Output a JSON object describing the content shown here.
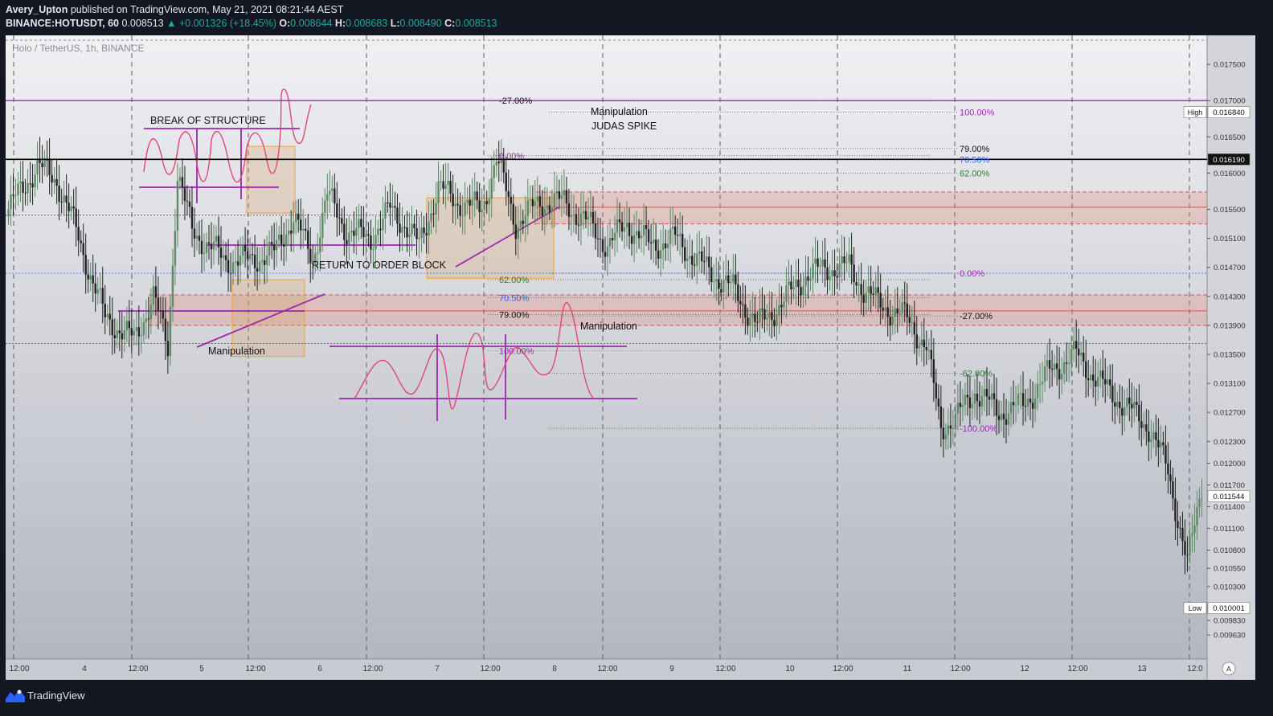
{
  "header": {
    "author": "Avery_Upton",
    "published": "published on TradingView.com, May 21, 2021 08:21:44 AEST",
    "symbol": "BINANCE:HOTUSDT, 60",
    "last": "0.008513",
    "change": "▲ +0.001326 (+18.45%)",
    "o_label": "O:",
    "o": "0.008644",
    "h_label": "H:",
    "h": "0.008683",
    "l_label": "L:",
    "l": "0.008490",
    "c_label": "C:",
    "c": "0.008513"
  },
  "footer": {
    "brand": "TradingView"
  },
  "chart_data": {
    "type": "candlestick",
    "title": "Holo / TetherUS, 1h, BINANCE",
    "ylim": [
      0.0093,
      0.0179
    ],
    "y_ticks": [
      "0.017500",
      "0.017000",
      "0.016500",
      "0.016000",
      "0.015500",
      "0.015100",
      "0.014700",
      "0.014300",
      "0.013900",
      "0.013500",
      "0.013100",
      "0.012700",
      "0.012300",
      "0.012000",
      "0.011700",
      "0.011400",
      "0.011100",
      "0.010800",
      "0.010550",
      "0.010300",
      "0.010000",
      "0.009830",
      "0.009630"
    ],
    "x_ticks": [
      "12:00",
      "4",
      "12:00",
      "5",
      "12:00",
      "6",
      "12:00",
      "7",
      "12:00",
      "8",
      "12:00",
      "9",
      "12:00",
      "10",
      "12:00",
      "11",
      "12:00",
      "12",
      "12:00",
      "13",
      "12:0"
    ],
    "price_badges": [
      {
        "label": "High",
        "value": "0.016840",
        "price": 0.01684
      },
      {
        "label": "",
        "value": "0.016190",
        "price": 0.01619
      },
      {
        "label": "",
        "value": "0.011544",
        "price": 0.011544
      },
      {
        "label": "Low",
        "value": "0.010001",
        "price": 0.010001
      }
    ],
    "axis_button": "A",
    "annotations": {
      "break_of_structure": "BREAK OF STRUCTURE",
      "return_to_order_block": "RETURN TO ORDER BLOCK",
      "manipulation_1": "Manipulation",
      "manipulation_2": "Manipulation",
      "manipulation_3": "Manipulation",
      "judas_spike": "JUDAS SPIKE"
    },
    "fib_1": [
      {
        "label": "-27.00%",
        "price": 0.017
      },
      {
        "label": "0.00%",
        "price": 0.01624
      },
      {
        "label": "62.00%",
        "price": 0.01453
      },
      {
        "label": "70.50%",
        "price": 0.01428
      },
      {
        "label": "79.00%",
        "price": 0.01405
      },
      {
        "label": "100.00%",
        "price": 0.01355
      }
    ],
    "fib_2": [
      {
        "label": "100.00%",
        "price": 0.01684
      },
      {
        "label": "79.00%",
        "price": 0.01634
      },
      {
        "label": "70.50%",
        "price": 0.01619
      },
      {
        "label": "62.00%",
        "price": 0.016
      },
      {
        "label": "0.00%",
        "price": 0.01462
      },
      {
        "label": "-27.00%",
        "price": 0.01403
      },
      {
        "label": "-62.00%",
        "price": 0.01324
      },
      {
        "label": "-100.00%",
        "price": 0.01248
      }
    ],
    "horizontal_lines": [
      {
        "price": 0.017,
        "color": "#9c27b0"
      },
      {
        "price": 0.01619,
        "color": "#000000"
      }
    ],
    "supply_demand_zones": [
      {
        "top": 0.01574,
        "mid": 0.01553,
        "bottom": 0.0153
      },
      {
        "top": 0.01432,
        "mid": 0.0141,
        "bottom": 0.0139
      }
    ],
    "colors": {
      "up": "#5d8a64",
      "down": "#222222",
      "fib_purple": "#9c27b0",
      "fib_blue": "#2962ff",
      "fib_green": "#2e7d32",
      "drawing": "#e0457b"
    }
  }
}
